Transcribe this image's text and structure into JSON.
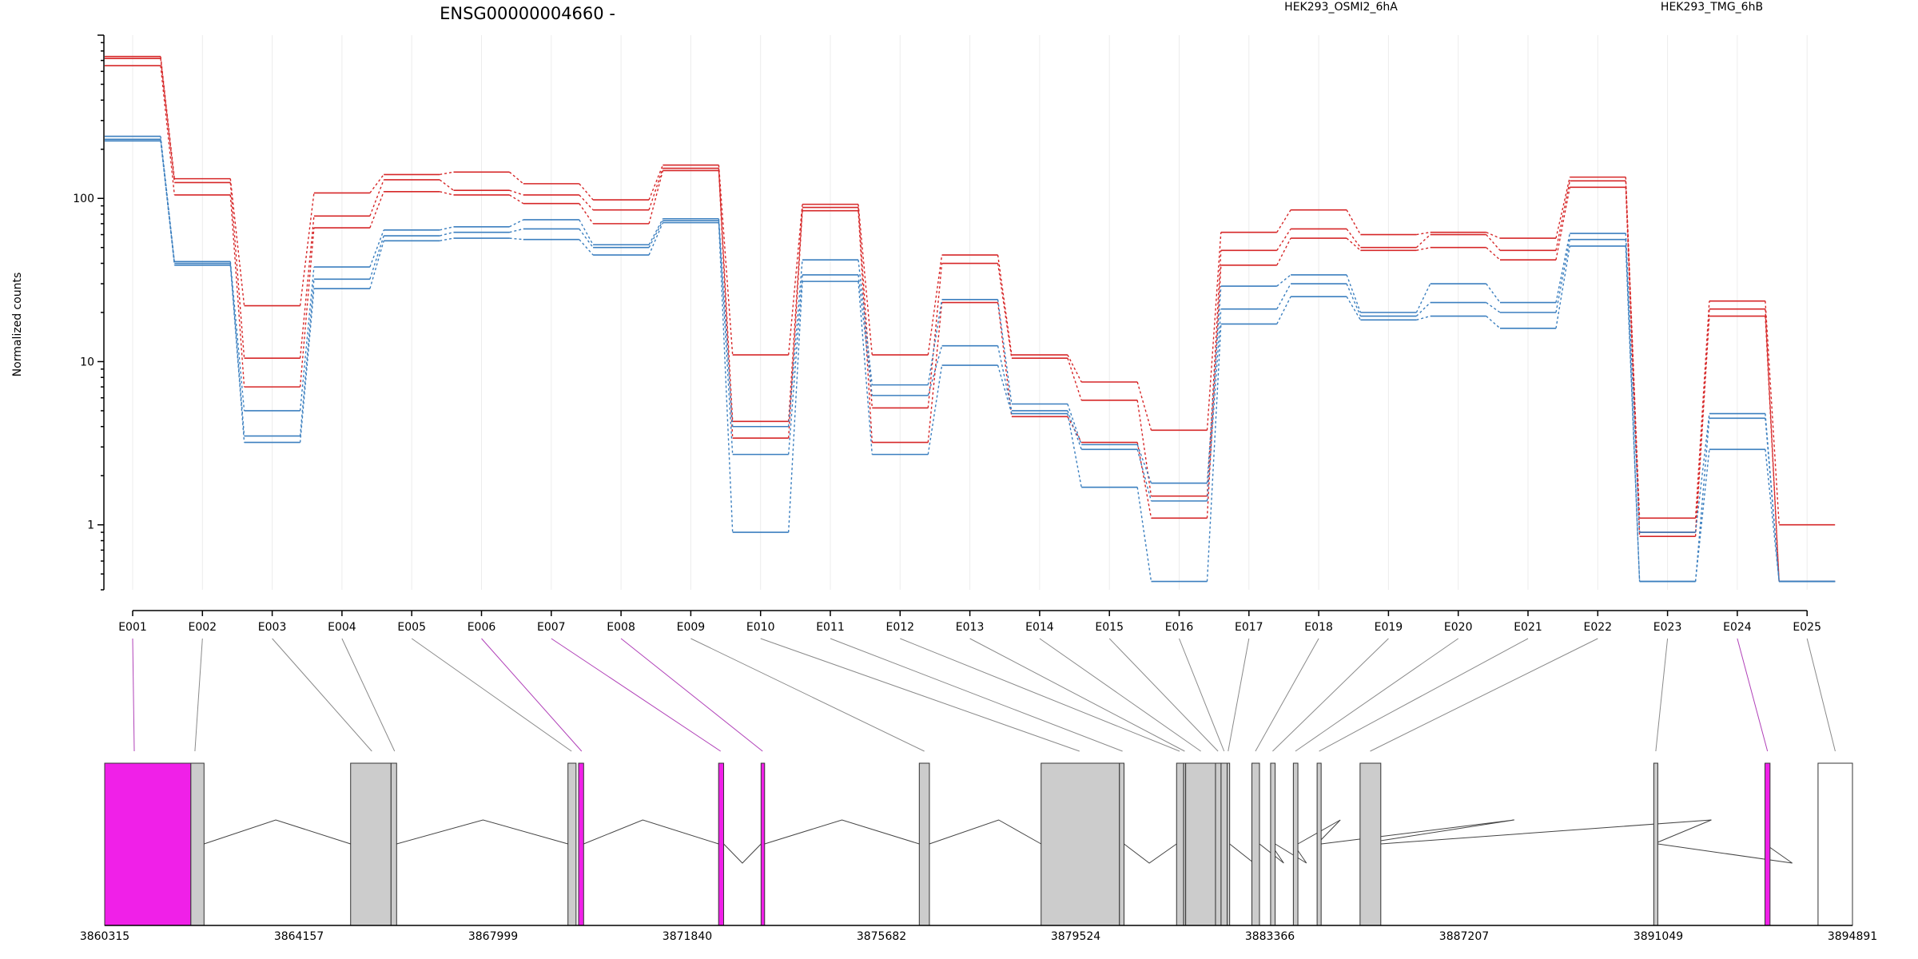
{
  "chart_data": {
    "type": "line",
    "title": "ENSG00000004660 -",
    "ylabel": "Normalized counts",
    "yscale": "log",
    "ylim": [
      0.4,
      1000
    ],
    "yticks": [
      {
        "value": 1,
        "label": "1"
      },
      {
        "value": 10,
        "label": "10"
      },
      {
        "value": 100,
        "label": "100"
      }
    ],
    "categories": [
      "E001",
      "E002",
      "E003",
      "E004",
      "E005",
      "E006",
      "E007",
      "E008",
      "E009",
      "E010",
      "E011",
      "E012",
      "E013",
      "E014",
      "E015",
      "E016",
      "E017",
      "E018",
      "E019",
      "E020",
      "E021",
      "E022",
      "E023",
      "E024",
      "E025"
    ],
    "legend": [
      {
        "name": "HEK293_OSMI2_6hA",
        "color": "#d62728"
      },
      {
        "name": "HEK293_TMG_6hB",
        "color": "#3b7fbf"
      }
    ],
    "series": [
      {
        "group": 0,
        "values": [
          740,
          132,
          22,
          108,
          140,
          145,
          123,
          98,
          160,
          11,
          92,
          11,
          45,
          11,
          7.5,
          3.8,
          62,
          85,
          60,
          62,
          57,
          135,
          1.1,
          23.5,
          1.0
        ]
      },
      {
        "group": 0,
        "values": [
          720,
          125,
          10.5,
          78,
          130,
          112,
          105,
          85,
          153,
          4.3,
          88,
          5.2,
          40,
          10.5,
          5.8,
          1.5,
          48,
          65,
          50,
          60,
          48,
          128,
          0.9,
          21,
          0.45
        ]
      },
      {
        "group": 0,
        "values": [
          650,
          105,
          7,
          66,
          110,
          105,
          93,
          70,
          148,
          3.4,
          84,
          3.2,
          23,
          4.6,
          3.2,
          1.1,
          39,
          57,
          48,
          50,
          42,
          117,
          0.85,
          19,
          0.45
        ]
      },
      {
        "group": 1,
        "values": [
          240,
          41,
          5,
          38,
          64,
          67,
          74,
          52,
          75,
          4,
          42,
          7.2,
          24,
          5.5,
          3.1,
          1.8,
          29,
          34,
          20,
          30,
          23,
          61,
          0.9,
          4.8,
          0.45
        ]
      },
      {
        "group": 1,
        "values": [
          230,
          40,
          3.5,
          32,
          59,
          62,
          65,
          50,
          73,
          2.7,
          34,
          6.2,
          12.5,
          5,
          2.9,
          1.4,
          21,
          30,
          19,
          23,
          20,
          56,
          0.45,
          4.5,
          0.45
        ]
      },
      {
        "group": 1,
        "values": [
          225,
          39,
          3.2,
          28,
          55,
          57,
          56,
          45,
          71,
          0.9,
          31,
          2.7,
          9.5,
          4.8,
          1.7,
          0.45,
          17,
          25,
          18,
          19,
          16,
          51,
          0.45,
          2.9,
          0.45
        ]
      }
    ],
    "gene_model": {
      "xlim": [
        3860315,
        3894891
      ],
      "xticks": [
        {
          "value": 3860315,
          "label": "3860315"
        },
        {
          "value": 3864157,
          "label": "3864157"
        },
        {
          "value": 3867999,
          "label": "3867999"
        },
        {
          "value": 3871840,
          "label": "3871840"
        },
        {
          "value": 3875682,
          "label": "3875682"
        },
        {
          "value": 3879524,
          "label": "3879524"
        },
        {
          "value": 3883366,
          "label": "3883366"
        },
        {
          "value": 3887207,
          "label": "3887207"
        },
        {
          "value": 3891049,
          "label": "3891049"
        },
        {
          "value": 3894891,
          "label": "3894891"
        }
      ],
      "exons": [
        {
          "start": 3860315,
          "end": 3862020,
          "highlight": true
        },
        {
          "start": 3862020,
          "end": 3862280,
          "highlight": false
        },
        {
          "start": 3865180,
          "end": 3865980,
          "highlight": false
        },
        {
          "start": 3865980,
          "end": 3866090,
          "highlight": false
        },
        {
          "start": 3869480,
          "end": 3869640,
          "highlight": false
        },
        {
          "start": 3869690,
          "end": 3869790,
          "highlight": true
        },
        {
          "start": 3872460,
          "end": 3872560,
          "highlight": true
        },
        {
          "start": 3873300,
          "end": 3873370,
          "highlight": true
        },
        {
          "start": 3876430,
          "end": 3876630,
          "highlight": false
        },
        {
          "start": 3878840,
          "end": 3880390,
          "highlight": false
        },
        {
          "start": 3880390,
          "end": 3880480,
          "highlight": false
        },
        {
          "start": 3881520,
          "end": 3881660,
          "highlight": false
        },
        {
          "start": 3881660,
          "end": 3881700,
          "highlight": false
        },
        {
          "start": 3881700,
          "end": 3882290,
          "highlight": false
        },
        {
          "start": 3882290,
          "end": 3882400,
          "highlight": false
        },
        {
          "start": 3882400,
          "end": 3882520,
          "highlight": false
        },
        {
          "start": 3882520,
          "end": 3882570,
          "highlight": false
        },
        {
          "start": 3883010,
          "end": 3883160,
          "highlight": false
        },
        {
          "start": 3883380,
          "end": 3883470,
          "highlight": false
        },
        {
          "start": 3883830,
          "end": 3883920,
          "highlight": false
        },
        {
          "start": 3884300,
          "end": 3884380,
          "highlight": false
        },
        {
          "start": 3885150,
          "end": 3885560,
          "highlight": false
        },
        {
          "start": 3890960,
          "end": 3891040,
          "highlight": false
        },
        {
          "start": 3893160,
          "end": 3893260,
          "highlight": true
        },
        {
          "start": 3894210,
          "end": 3894891,
          "highlight": false
        }
      ],
      "exon_anchor": [
        3860900,
        3862100,
        3865600,
        3866050,
        3869550,
        3869750,
        3872500,
        3873330,
        3876530,
        3879600,
        3880450,
        3881580,
        3881680,
        3882000,
        3882340,
        3882460,
        3882540,
        3883080,
        3883420,
        3883870,
        3884340,
        3885350,
        3891000,
        3893210,
        3894550
      ],
      "intron_peaks": [
        {
          "x": 3863700,
          "up": true
        },
        {
          "x": 3867800,
          "up": true
        },
        {
          "x": 3870960,
          "up": true
        },
        {
          "x": 3872930,
          "up": false
        },
        {
          "x": 3874900,
          "up": true
        },
        {
          "x": 3878000,
          "up": true
        },
        {
          "x": 3880980,
          "up": false
        },
        {
          "x": 3883050,
          "up": false
        },
        {
          "x": 3883640,
          "up": false
        },
        {
          "x": 3884090,
          "up": false
        },
        {
          "x": 3884760,
          "up": true
        },
        {
          "x": 3888200,
          "up": true
        },
        {
          "x": 3892100,
          "up": true
        },
        {
          "x": 3893700,
          "up": false
        }
      ]
    }
  }
}
